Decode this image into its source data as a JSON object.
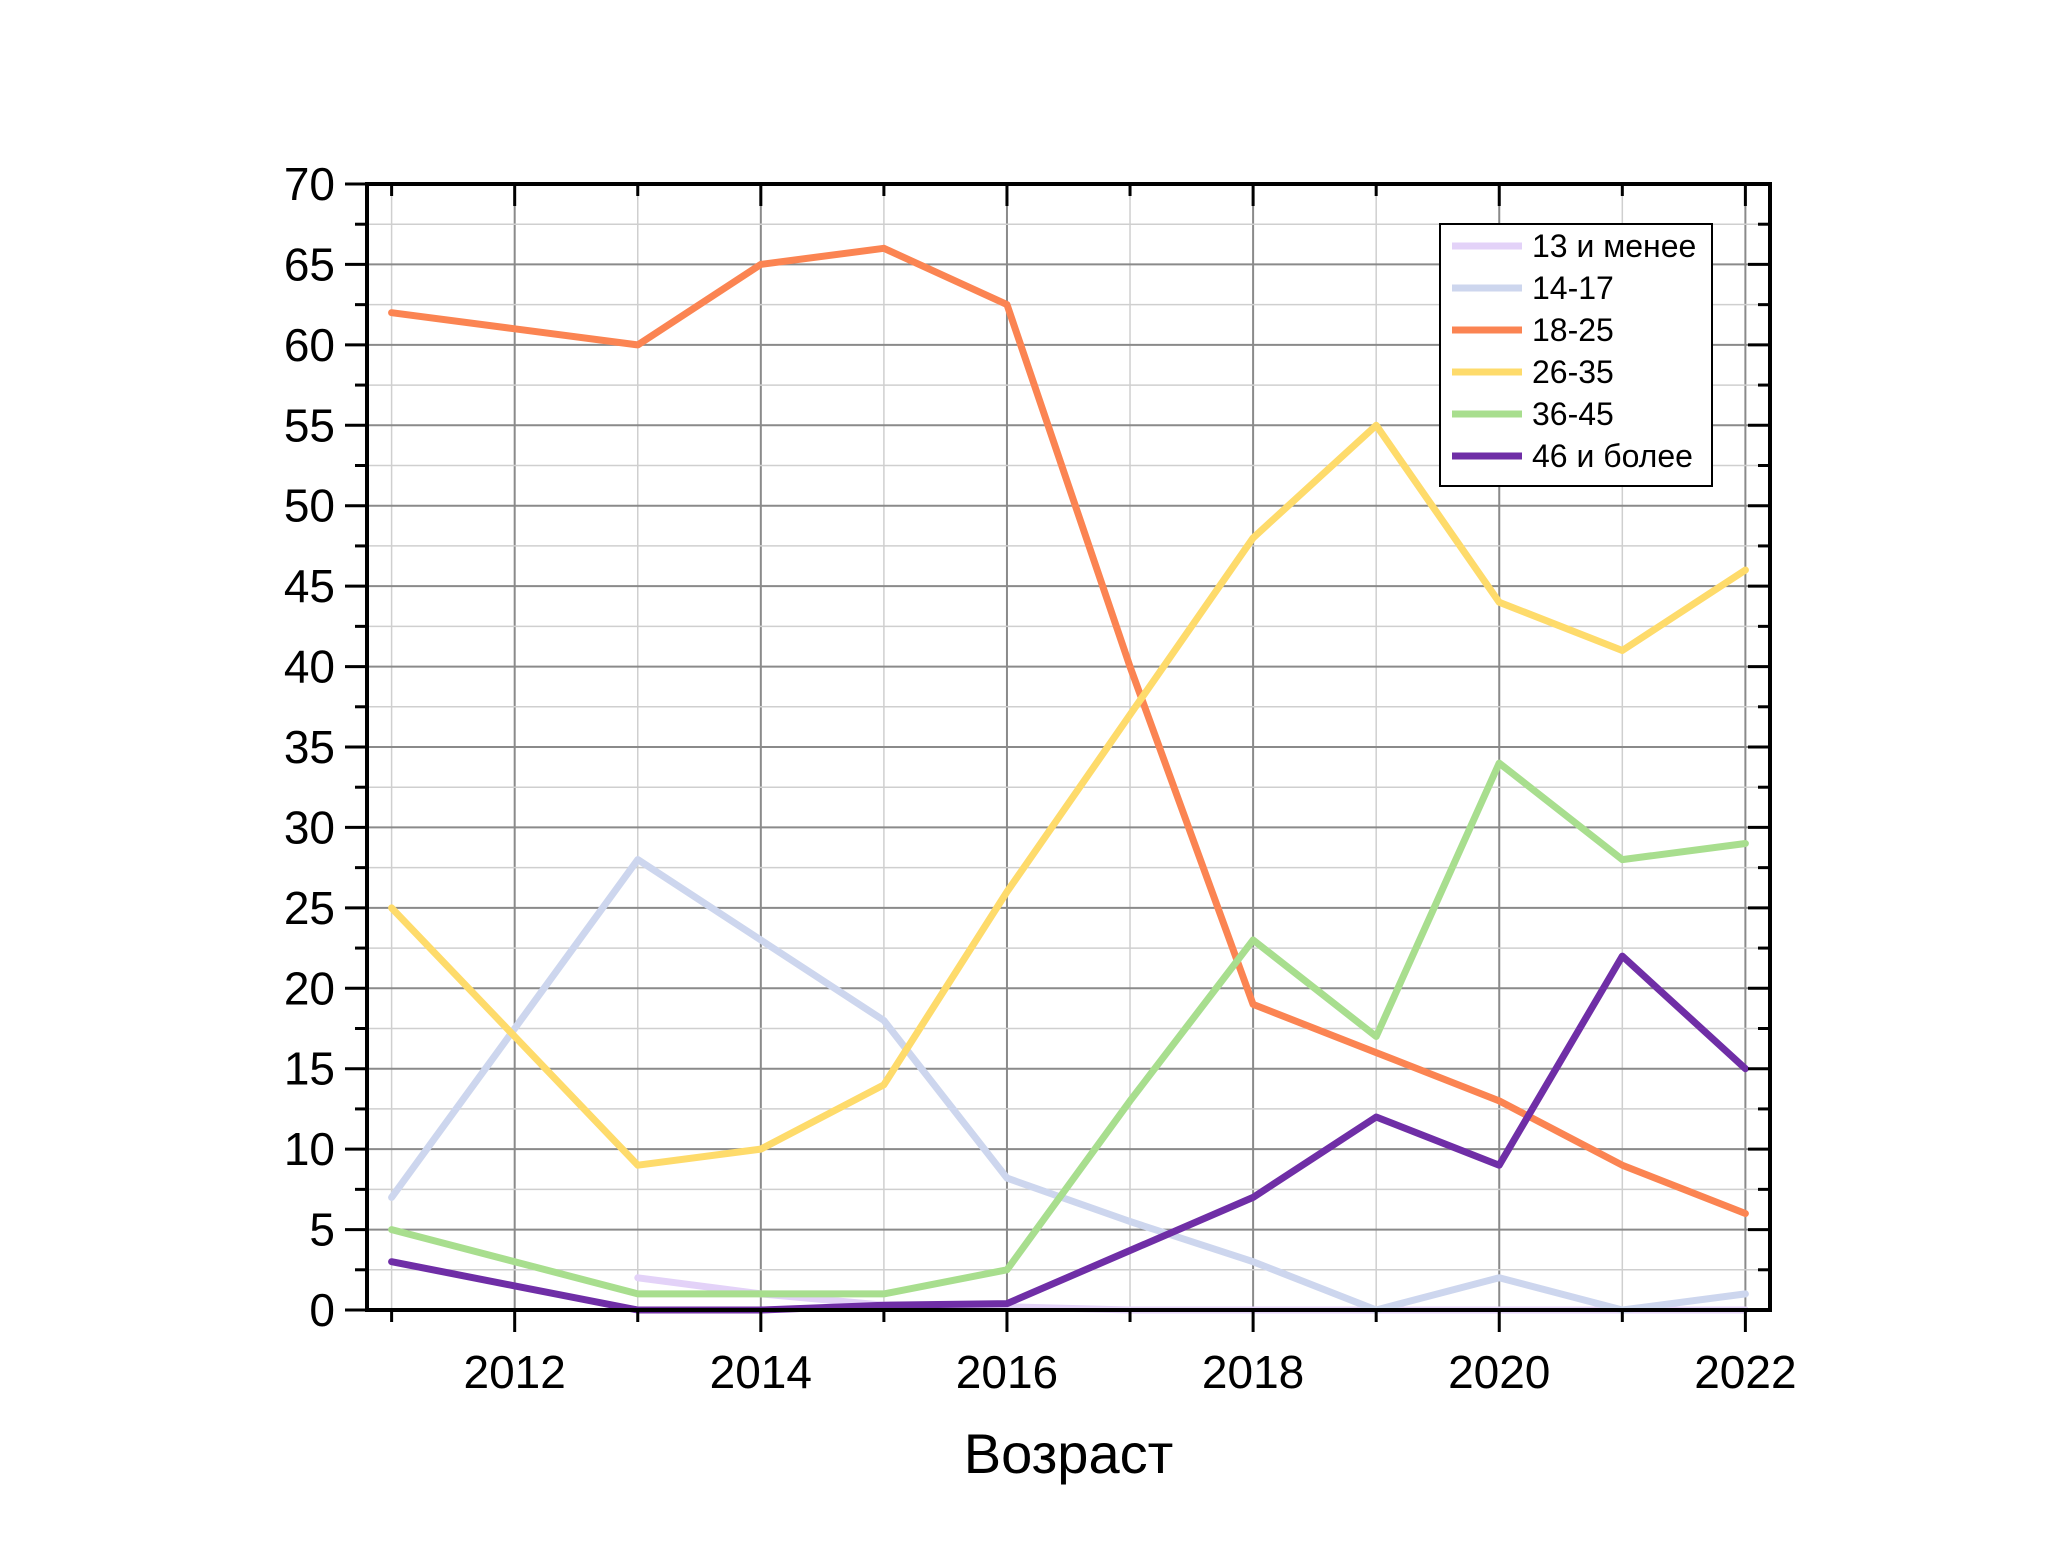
{
  "chart_data": {
    "type": "line",
    "title": "",
    "xlabel": "Возраст",
    "ylabel": "",
    "xlim": [
      2010.8,
      2022.2
    ],
    "ylim": [
      0,
      70
    ],
    "x_ticks": [
      2012,
      2014,
      2016,
      2018,
      2020,
      2022
    ],
    "x_tick_labels": [
      "2012",
      "2014",
      "2016",
      "2018",
      "2020",
      "2022"
    ],
    "y_ticks": [
      0,
      5,
      10,
      15,
      20,
      25,
      30,
      35,
      40,
      45,
      50,
      55,
      60,
      65,
      70
    ],
    "y_tick_labels": [
      "0",
      "5",
      "10",
      "15",
      "20",
      "25",
      "30",
      "35",
      "40",
      "45",
      "50",
      "55",
      "60",
      "65",
      "70"
    ],
    "grid": true,
    "legend_position": "top-right",
    "x": [
      2011,
      2012,
      2013,
      2014,
      2015,
      2016,
      2017,
      2018,
      2019,
      2020,
      2021,
      2022
    ],
    "series": [
      {
        "name": "13 и менее",
        "color": "#e3d2f8",
        "values": [
          null,
          null,
          2,
          1,
          0.3,
          0.2,
          0,
          0,
          0,
          0,
          0,
          0
        ]
      },
      {
        "name": "14-17",
        "color": "#cdd6ee",
        "values": [
          7,
          17.5,
          28,
          23,
          18,
          8.2,
          5.5,
          3,
          0,
          2,
          0,
          1
        ]
      },
      {
        "name": "18-25",
        "color": "#fb8452",
        "values": [
          62,
          61,
          60,
          65,
          66,
          62.5,
          40,
          19,
          16,
          13,
          9,
          6
        ]
      },
      {
        "name": "26-35",
        "color": "#fedb6b",
        "values": [
          25,
          17,
          9,
          10,
          14,
          26,
          37,
          48,
          55,
          44,
          41,
          46
        ]
      },
      {
        "name": "36-45",
        "color": "#a8de8e",
        "values": [
          5,
          3,
          1,
          1,
          1,
          2.5,
          13,
          23,
          17,
          34,
          28,
          29
        ]
      },
      {
        "name": "46 и более",
        "color": "#6f2ea6",
        "values": [
          3,
          1.5,
          0,
          0,
          0.3,
          0.4,
          3.7,
          7,
          12,
          9,
          22,
          15
        ]
      }
    ]
  }
}
